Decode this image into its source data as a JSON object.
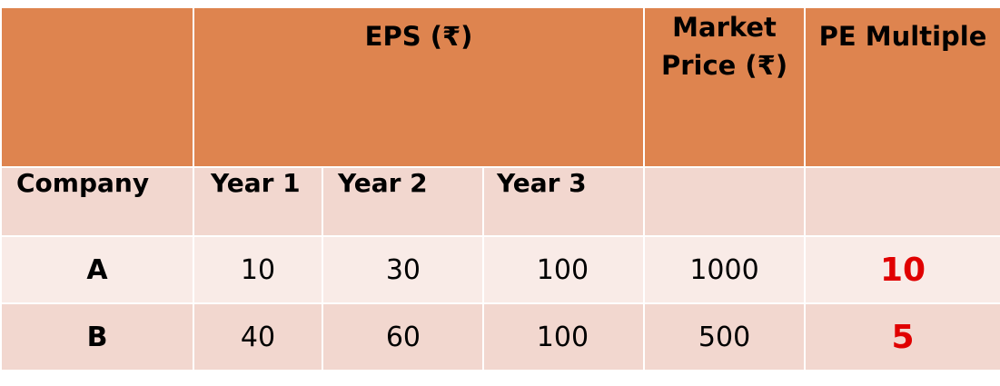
{
  "header": {
    "eps_label": "EPS (₹)",
    "market_line1": "Market",
    "market_line2": "Price (₹)",
    "pe_label": "PE Multiple"
  },
  "subheader": {
    "company": "Company",
    "year1": "Year 1",
    "year2": "Year 2",
    "year3": "Year 3"
  },
  "rows": [
    {
      "company": "A",
      "year1": "10",
      "year2": "30",
      "year3": "100",
      "market_price": "1000",
      "pe_multiple": "10"
    },
    {
      "company": "B",
      "year1": "40",
      "year2": "60",
      "year3": "100",
      "market_price": "500",
      "pe_multiple": "5"
    }
  ],
  "colors": {
    "header_bg": "#de844f",
    "subheader_bg": "#f2d7cf",
    "row_light_bg": "#f9ebe7",
    "pe_value_color": "#e00000"
  }
}
